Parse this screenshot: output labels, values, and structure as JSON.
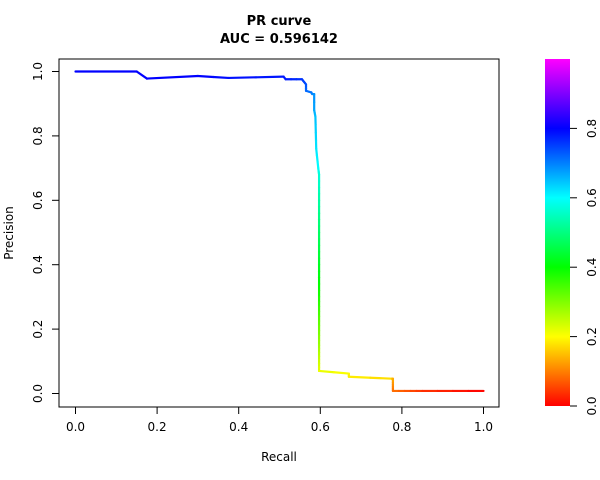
{
  "chart_data": {
    "type": "line",
    "title": "PR curve",
    "subtitle": "AUC = 0.596142",
    "xlabel": "Recall",
    "ylabel": "Precision",
    "xlim": [
      0,
      1
    ],
    "ylim": [
      0,
      1
    ],
    "x_ticks": [
      "0.0",
      "0.2",
      "0.4",
      "0.6",
      "0.8",
      "1.0"
    ],
    "y_ticks": [
      "0.0",
      "0.2",
      "0.4",
      "0.6",
      "0.8",
      "1.0"
    ],
    "grid": false,
    "colorbar": {
      "range": [
        0,
        1
      ],
      "ticks": [
        "0.0",
        "0.2",
        "0.4",
        "0.6",
        "0.8"
      ],
      "colors": [
        "#ff0000",
        "#ffff00",
        "#00ff00",
        "#00ffff",
        "#0000ff",
        "#ff00ff"
      ]
    },
    "series": [
      {
        "points": [
          {
            "x": 0.0,
            "y": 1.0,
            "t": 0.8
          },
          {
            "x": 0.15,
            "y": 1.0,
            "t": 0.8
          },
          {
            "x": 0.175,
            "y": 0.978,
            "t": 0.8
          },
          {
            "x": 0.3,
            "y": 0.986,
            "t": 0.8
          },
          {
            "x": 0.375,
            "y": 0.98,
            "t": 0.79
          },
          {
            "x": 0.51,
            "y": 0.984,
            "t": 0.78
          },
          {
            "x": 0.515,
            "y": 0.976,
            "t": 0.78
          },
          {
            "x": 0.555,
            "y": 0.976,
            "t": 0.76
          },
          {
            "x": 0.56,
            "y": 0.968,
            "t": 0.75
          },
          {
            "x": 0.565,
            "y": 0.96,
            "t": 0.74
          },
          {
            "x": 0.565,
            "y": 0.94,
            "t": 0.72
          },
          {
            "x": 0.578,
            "y": 0.935,
            "t": 0.71
          },
          {
            "x": 0.58,
            "y": 0.93,
            "t": 0.7
          },
          {
            "x": 0.585,
            "y": 0.93,
            "t": 0.69
          },
          {
            "x": 0.585,
            "y": 0.88,
            "t": 0.67
          },
          {
            "x": 0.588,
            "y": 0.86,
            "t": 0.65
          },
          {
            "x": 0.59,
            "y": 0.76,
            "t": 0.62
          },
          {
            "x": 0.595,
            "y": 0.7,
            "t": 0.6
          },
          {
            "x": 0.597,
            "y": 0.68,
            "t": 0.57
          },
          {
            "x": 0.597,
            "y": 0.5,
            "t": 0.48
          },
          {
            "x": 0.597,
            "y": 0.3,
            "t": 0.38
          },
          {
            "x": 0.597,
            "y": 0.15,
            "t": 0.28
          },
          {
            "x": 0.597,
            "y": 0.07,
            "t": 0.22
          },
          {
            "x": 0.67,
            "y": 0.062,
            "t": 0.2
          },
          {
            "x": 0.67,
            "y": 0.052,
            "t": 0.19
          },
          {
            "x": 0.775,
            "y": 0.046,
            "t": 0.17
          },
          {
            "x": 0.778,
            "y": 0.046,
            "t": 0.14
          },
          {
            "x": 0.778,
            "y": 0.008,
            "t": 0.09
          },
          {
            "x": 0.85,
            "y": 0.008,
            "t": 0.04
          },
          {
            "x": 1.0,
            "y": 0.008,
            "t": 0.0
          }
        ]
      }
    ]
  }
}
